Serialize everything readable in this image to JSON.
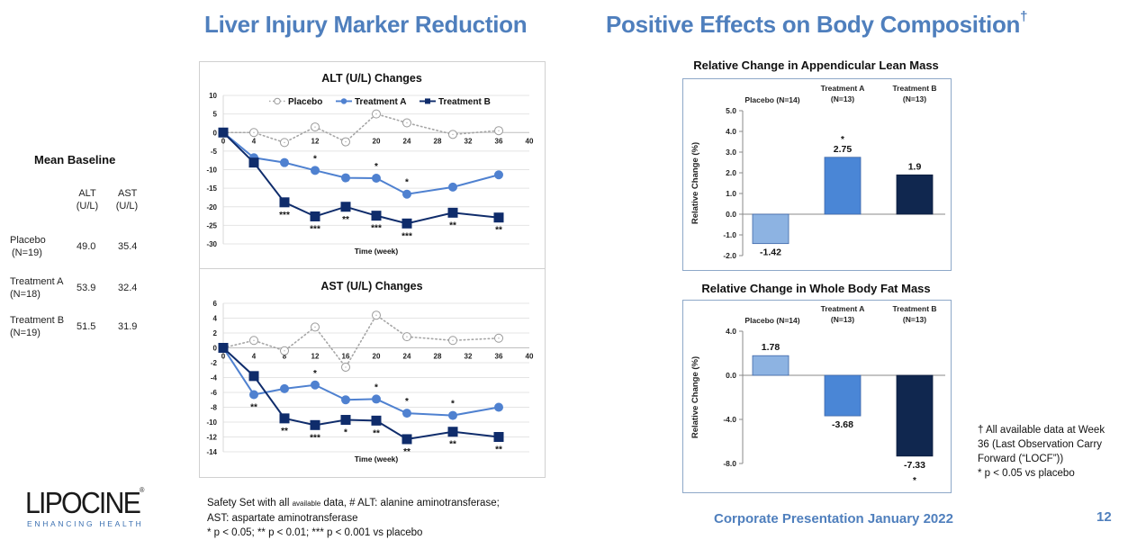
{
  "headings": {
    "left": "Liver Injury Marker Reduction",
    "right": "Positive Effects on Body Composition",
    "right_mark": "†"
  },
  "baseline": {
    "title": "Mean Baseline",
    "col_headers": [
      [
        "ALT",
        "(U/L)"
      ],
      [
        "AST",
        "(U/L)"
      ]
    ],
    "rows": [
      {
        "group": "Placebo",
        "n": "(N=19)",
        "alt": "49.0",
        "ast": "35.4"
      },
      {
        "group": "Treatment A",
        "n": "(N=18)",
        "alt": "53.9",
        "ast": "32.4"
      },
      {
        "group": "Treatment B",
        "n": "(N=19)",
        "alt": "51.5",
        "ast": "31.9"
      }
    ]
  },
  "colors": {
    "placebo": "#a6a6a6",
    "treatment_a": "#4f81d0",
    "treatment_b": "#0f2c6b",
    "bar_placebo": "#8db3e2",
    "bar_a": "#4a86d6",
    "bar_b": "#10274f",
    "heading": "#4f7fbd"
  },
  "chart_data": [
    {
      "id": "alt",
      "type": "line",
      "title": "ALT (U/L) Changes",
      "xlabel": "Time (week)",
      "ylabel": "",
      "xlim": [
        0,
        40
      ],
      "xticks": [
        0,
        4,
        8,
        12,
        16,
        20,
        24,
        28,
        32,
        36,
        40
      ],
      "ylim": [
        -30,
        10
      ],
      "yticks": [
        10,
        5,
        0,
        -5,
        -10,
        -15,
        -20,
        -25,
        -30
      ],
      "grid": true,
      "legend": "top",
      "x": [
        0,
        4,
        8,
        12,
        16,
        20,
        24,
        30,
        36
      ],
      "series": [
        {
          "name": "Placebo",
          "values": [
            0,
            0,
            -2.7,
            1.5,
            -2.5,
            5.0,
            2.6,
            -0.5,
            0.5
          ],
          "marker": "open-circle",
          "style": "dotted"
        },
        {
          "name": "Treatment A",
          "values": [
            0,
            -6.8,
            -8.1,
            -10.2,
            -12.2,
            -12.3,
            -16.6,
            -14.7,
            -11.4
          ],
          "marker": "circle",
          "style": "solid",
          "annotations": [
            "",
            "",
            "",
            "*",
            "",
            "*",
            "*",
            "",
            ""
          ]
        },
        {
          "name": "Treatment B",
          "values": [
            0,
            -8.1,
            -18.8,
            -22.6,
            -20.0,
            -22.4,
            -24.5,
            -21.6,
            -22.9
          ],
          "marker": "square",
          "style": "solid",
          "annotations": [
            "",
            "",
            "***",
            "***",
            "**",
            "***",
            "***",
            "**",
            "**"
          ]
        }
      ]
    },
    {
      "id": "ast",
      "type": "line",
      "title": "AST (U/L) Changes",
      "xlabel": "Time (week)",
      "ylabel": "",
      "xlim": [
        0,
        40
      ],
      "xticks": [
        0,
        4,
        8,
        12,
        16,
        20,
        24,
        28,
        32,
        36,
        40
      ],
      "ylim": [
        -14,
        6
      ],
      "yticks": [
        6,
        4,
        2,
        0,
        -2,
        -4,
        -6,
        -8,
        -10,
        -12,
        -14
      ],
      "grid": true,
      "legend": "none",
      "x": [
        0,
        4,
        8,
        12,
        16,
        20,
        24,
        30,
        36
      ],
      "series": [
        {
          "name": "Placebo",
          "values": [
            0,
            1.0,
            -0.4,
            2.8,
            -2.6,
            4.4,
            1.5,
            1.0,
            1.3
          ],
          "marker": "open-circle",
          "style": "dotted"
        },
        {
          "name": "Treatment A",
          "values": [
            0,
            -6.3,
            -5.5,
            -5.0,
            -7.0,
            -6.9,
            -8.8,
            -9.1,
            -8.0
          ],
          "marker": "circle",
          "style": "solid",
          "annotations": [
            "",
            "**",
            "",
            "*",
            "",
            "*",
            "*",
            "*",
            ""
          ]
        },
        {
          "name": "Treatment B",
          "values": [
            0,
            -3.8,
            -9.5,
            -10.4,
            -9.7,
            -9.8,
            -12.3,
            -11.3,
            -12.0
          ],
          "marker": "square",
          "style": "solid",
          "annotations": [
            "",
            "",
            "**",
            "***",
            "*",
            "**",
            "**",
            "**",
            "**"
          ]
        }
      ]
    },
    {
      "id": "lean",
      "type": "bar",
      "title": "Relative Change in Appendicular Lean Mass",
      "ylabel": "Relative Change (%)",
      "categories": [
        [
          "Placebo (N=14)"
        ],
        [
          "Treatment A",
          "(N=13)"
        ],
        [
          "Treatment B",
          "(N=13)"
        ]
      ],
      "values": [
        -1.42,
        2.75,
        1.9
      ],
      "labels": [
        "-1.42",
        "2.75",
        "1.9"
      ],
      "significance": [
        "",
        "*",
        ""
      ],
      "ylim": [
        -2,
        5
      ],
      "yticks": [
        "5.0",
        "4.0",
        "3.0",
        "2.0",
        "1.0",
        "0.0",
        "-1.0",
        "-2.0"
      ],
      "ytick_values": [
        5,
        4,
        3,
        2,
        1,
        0,
        -1,
        -2
      ],
      "grid": false
    },
    {
      "id": "fat",
      "type": "bar",
      "title": "Relative Change in Whole Body Fat Mass",
      "ylabel": "Relative Change (%)",
      "categories": [
        [
          "Placebo (N=14)"
        ],
        [
          "Treatment A",
          "(N=13)"
        ],
        [
          "Treatment B",
          "(N=13)"
        ]
      ],
      "values": [
        1.78,
        -3.68,
        -7.33
      ],
      "labels": [
        "1.78",
        "-3.68",
        "-7.33"
      ],
      "significance": [
        "",
        "",
        "*"
      ],
      "ylim": [
        -8,
        4
      ],
      "yticks": [
        "4.0",
        "0.0",
        "-4.0",
        "-8.0"
      ],
      "ytick_values": [
        4,
        0,
        -4,
        -8
      ],
      "grid": false
    }
  ],
  "footnotes": {
    "left_line1_pre": "Safety Set with all ",
    "left_line1_small": "available",
    "left_line1_post": " data,  # ALT:  alanine aminotransferase;",
    "left_line2": "AST: aspartate aminotransferase",
    "left_line3": "* p < 0.05; ** p < 0.01; *** p < 0.001 vs placebo",
    "right_line1": "† All available data at Week",
    "right_line2": "36 (Last Observation Carry",
    "right_line3": "Forward (“LOCF”))",
    "right_line4": "* p < 0.05 vs placebo"
  },
  "footer": {
    "presentation": "Corporate Presentation January 2022",
    "page": "12"
  },
  "logo": {
    "name": "LIPOCINE",
    "reg": "®",
    "tagline": "ENHANCING HEALTH"
  }
}
